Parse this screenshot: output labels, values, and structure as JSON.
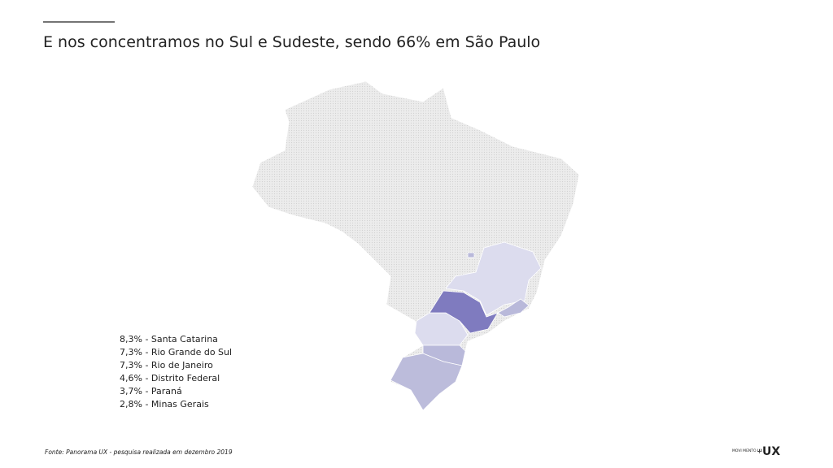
{
  "header": {
    "title": "E nos concentramos no Sul e Sudeste, sendo 66% em São Paulo"
  },
  "legend": {
    "items": [
      "8,3% - Santa Catarina",
      "7,3% - Rio Grande do Sul",
      "7,3% - Rio de Janeiro",
      "4,6% - Distrito Federal",
      "3,7% - Paraná",
      "2,8% - Minas Gerais"
    ]
  },
  "footer": {
    "source": "Fonte: Panorama UX - pesquisa realizada em dezembro 2019",
    "logo_small": "MOVI MENTO UX",
    "logo_plus": "+",
    "logo_big": "UX"
  }
}
